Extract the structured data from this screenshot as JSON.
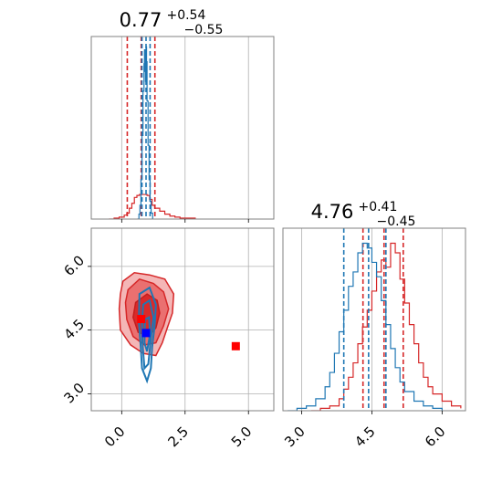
{
  "chart_data": [
    {
      "type": "histogram",
      "panel": "marginal-param-1",
      "title": {
        "value": "0.77",
        "plus": "+0.54",
        "minus": "−0.55"
      },
      "xlim": [
        -1.2,
        6.0
      ],
      "grid": true,
      "series": [
        {
          "color": "#d62728",
          "quantiles": [
            0.22,
            0.77,
            1.31
          ],
          "bins": [
            [
              -0.5,
              0
            ],
            [
              -0.3,
              1
            ],
            [
              -0.1,
              2
            ],
            [
              0.1,
              4
            ],
            [
              0.2,
              6
            ],
            [
              0.3,
              11
            ],
            [
              0.4,
              16
            ],
            [
              0.5,
              22
            ],
            [
              0.6,
              24
            ],
            [
              0.7,
              25
            ],
            [
              0.8,
              25
            ],
            [
              0.9,
              25
            ],
            [
              1.0,
              24
            ],
            [
              1.1,
              20
            ],
            [
              1.2,
              14
            ],
            [
              1.3,
              11
            ],
            [
              1.5,
              8
            ],
            [
              1.7,
              5
            ],
            [
              1.9,
              3
            ],
            [
              2.1,
              2
            ],
            [
              2.3,
              1
            ],
            [
              2.6,
              1
            ],
            [
              2.9,
              0
            ]
          ]
        },
        {
          "color": "#1f77b4",
          "quantiles": [
            0.8,
            0.96,
            1.12
          ],
          "bins": [
            [
              0.62,
              0
            ],
            [
              0.68,
              5
            ],
            [
              0.72,
              14
            ],
            [
              0.76,
              40
            ],
            [
              0.8,
              85
            ],
            [
              0.84,
              130
            ],
            [
              0.88,
              158
            ],
            [
              0.9,
              172
            ],
            [
              0.92,
              150
            ],
            [
              0.94,
              140
            ],
            [
              0.96,
              175
            ],
            [
              0.98,
              160
            ],
            [
              1.0,
              120
            ],
            [
              1.04,
              75
            ],
            [
              1.08,
              40
            ],
            [
              1.12,
              18
            ],
            [
              1.16,
              6
            ],
            [
              1.22,
              0
            ]
          ]
        }
      ]
    },
    {
      "type": "contour",
      "panel": "joint",
      "xlim": [
        -1.2,
        6.0
      ],
      "ylim": [
        2.6,
        6.9
      ],
      "xticks": [
        "0.0",
        "2.5",
        "5.0"
      ],
      "yticks": [
        "3.0",
        "4.5",
        "6.0"
      ],
      "grid": true,
      "contours": {
        "red_outer": [
          [
            0.05,
            5.65
          ],
          [
            0.5,
            5.85
          ],
          [
            1.1,
            5.8
          ],
          [
            1.7,
            5.7
          ],
          [
            2.05,
            5.35
          ],
          [
            2.0,
            4.9
          ],
          [
            1.8,
            4.55
          ],
          [
            1.6,
            4.2
          ],
          [
            1.35,
            3.9
          ],
          [
            0.85,
            3.95
          ],
          [
            0.35,
            4.15
          ],
          [
            -0.05,
            4.5
          ],
          [
            -0.1,
            5.0
          ],
          [
            -0.05,
            5.35
          ]
        ],
        "red_mid": [
          [
            0.25,
            5.45
          ],
          [
            0.7,
            5.7
          ],
          [
            1.25,
            5.6
          ],
          [
            1.65,
            5.4
          ],
          [
            1.85,
            5.0
          ],
          [
            1.65,
            4.6
          ],
          [
            1.35,
            4.2
          ],
          [
            0.9,
            4.15
          ],
          [
            0.45,
            4.35
          ],
          [
            0.2,
            4.75
          ],
          [
            0.15,
            5.15
          ]
        ],
        "red_inner": [
          [
            0.55,
            5.15
          ],
          [
            1.0,
            5.35
          ],
          [
            1.4,
            5.2
          ],
          [
            1.5,
            4.9
          ],
          [
            1.35,
            4.55
          ],
          [
            1.05,
            4.35
          ],
          [
            0.65,
            4.45
          ],
          [
            0.45,
            4.8
          ]
        ],
        "blue_outer": [
          [
            0.7,
            5.35
          ],
          [
            1.1,
            5.5
          ],
          [
            1.35,
            5.1
          ],
          [
            1.3,
            4.6
          ],
          [
            1.2,
            4.1
          ],
          [
            1.15,
            3.6
          ],
          [
            1.0,
            3.3
          ],
          [
            0.8,
            3.6
          ],
          [
            0.75,
            4.1
          ],
          [
            0.68,
            4.7
          ]
        ],
        "blue_mid": [
          [
            0.85,
            5.1
          ],
          [
            1.1,
            5.2
          ],
          [
            1.25,
            4.8
          ],
          [
            1.15,
            4.3
          ],
          [
            1.05,
            3.7
          ],
          [
            0.9,
            3.6
          ],
          [
            0.82,
            4.2
          ],
          [
            0.8,
            4.7
          ]
        ],
        "blue_inner": [
          [
            0.92,
            4.75
          ],
          [
            1.08,
            4.8
          ],
          [
            1.12,
            4.4
          ],
          [
            1.0,
            4.0
          ],
          [
            0.9,
            4.2
          ]
        ]
      },
      "markers": [
        {
          "color": "#ff0000",
          "x": 0.77,
          "y": 4.76
        },
        {
          "color": "#0000ff",
          "x": 0.96,
          "y": 4.43
        },
        {
          "color": "#ff0000",
          "x": 4.5,
          "y": 4.12
        }
      ]
    },
    {
      "type": "histogram",
      "panel": "marginal-param-2",
      "title": {
        "value": "4.76",
        "plus": "+0.41",
        "minus": "−0.45"
      },
      "xlim": [
        2.6,
        6.5
      ],
      "xticks": [
        "3.0",
        "4.5",
        "6.0"
      ],
      "grid": true,
      "series": [
        {
          "color": "#d62728",
          "quantiles": [
            4.31,
            4.76,
            5.17
          ],
          "bins": [
            [
              3.2,
              0
            ],
            [
              3.4,
              1
            ],
            [
              3.6,
              2
            ],
            [
              3.8,
              5
            ],
            [
              3.9,
              9
            ],
            [
              4.0,
              14
            ],
            [
              4.1,
              20
            ],
            [
              4.2,
              28
            ],
            [
              4.3,
              35
            ],
            [
              4.4,
              42
            ],
            [
              4.5,
              50
            ],
            [
              4.6,
              58
            ],
            [
              4.7,
              63
            ],
            [
              4.8,
              60
            ],
            [
              4.9,
              70
            ],
            [
              5.0,
              66
            ],
            [
              5.1,
              55
            ],
            [
              5.2,
              45
            ],
            [
              5.3,
              36
            ],
            [
              5.4,
              28
            ],
            [
              5.5,
              20
            ],
            [
              5.6,
              14
            ],
            [
              5.7,
              10
            ],
            [
              5.8,
              7
            ],
            [
              6.0,
              4
            ],
            [
              6.2,
              2
            ],
            [
              6.4,
              1
            ]
          ]
        },
        {
          "color": "#1f77b4",
          "quantiles": [
            3.9,
            4.43,
            4.8
          ],
          "bins": [
            [
              2.7,
              0
            ],
            [
              2.9,
              1
            ],
            [
              3.1,
              2
            ],
            [
              3.3,
              5
            ],
            [
              3.5,
              10
            ],
            [
              3.6,
              16
            ],
            [
              3.7,
              24
            ],
            [
              3.8,
              33
            ],
            [
              3.9,
              42
            ],
            [
              4.0,
              52
            ],
            [
              4.1,
              58
            ],
            [
              4.2,
              66
            ],
            [
              4.3,
              70
            ],
            [
              4.4,
              68
            ],
            [
              4.5,
              62
            ],
            [
              4.6,
              56
            ],
            [
              4.7,
              46
            ],
            [
              4.8,
              36
            ],
            [
              4.9,
              26
            ],
            [
              5.0,
              18
            ],
            [
              5.1,
              12
            ],
            [
              5.2,
              8
            ],
            [
              5.4,
              4
            ],
            [
              5.6,
              2
            ],
            [
              5.8,
              1
            ],
            [
              6.0,
              0
            ]
          ]
        }
      ]
    }
  ]
}
